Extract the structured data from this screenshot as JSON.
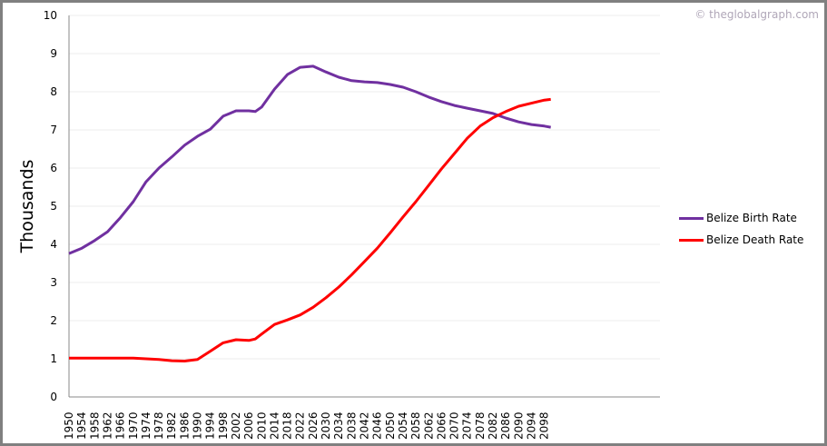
{
  "watermark": "© theglobalgraph.com",
  "chart_data": {
    "type": "line",
    "title": "",
    "xlabel": "",
    "ylabel": "Thousands",
    "ylim": [
      0,
      10
    ],
    "yticks": [
      0,
      1,
      2,
      3,
      4,
      5,
      6,
      7,
      8,
      9,
      10
    ],
    "xlim": [
      1950,
      2134
    ],
    "xticks": [
      1950,
      1954,
      1958,
      1962,
      1966,
      1970,
      1974,
      1978,
      1982,
      1986,
      1990,
      1994,
      1998,
      2002,
      2006,
      2010,
      2014,
      2018,
      2022,
      2026,
      2030,
      2034,
      2038,
      2042,
      2046,
      2050,
      2054,
      2058,
      2062,
      2066,
      2070,
      2074,
      2078,
      2082,
      2086,
      2090,
      2094,
      2098
    ],
    "grid": true,
    "legend_position": "right",
    "x": [
      1950,
      1954,
      1958,
      1962,
      1966,
      1970,
      1974,
      1978,
      1982,
      1986,
      1990,
      1994,
      1998,
      2002,
      2006,
      2008,
      2010,
      2014,
      2018,
      2022,
      2026,
      2030,
      2034,
      2038,
      2042,
      2046,
      2050,
      2054,
      2058,
      2062,
      2066,
      2070,
      2074,
      2078,
      2082,
      2086,
      2090,
      2094,
      2098,
      2100
    ],
    "series": [
      {
        "name": "Belize Birth Rate",
        "color": "#7030a0",
        "values": [
          3.76,
          3.9,
          4.1,
          4.33,
          4.7,
          5.12,
          5.64,
          6.0,
          6.29,
          6.6,
          6.83,
          7.02,
          7.36,
          7.5,
          7.5,
          7.48,
          7.6,
          8.07,
          8.45,
          8.64,
          8.67,
          8.52,
          8.38,
          8.29,
          8.26,
          8.24,
          8.19,
          8.12,
          8.0,
          7.86,
          7.74,
          7.64,
          7.57,
          7.5,
          7.43,
          7.31,
          7.21,
          7.14,
          7.1,
          7.07
        ]
      },
      {
        "name": "Belize Death Rate",
        "color": "#ff0000",
        "values": [
          1.02,
          1.02,
          1.02,
          1.02,
          1.02,
          1.02,
          1.0,
          0.98,
          0.95,
          0.94,
          0.98,
          1.2,
          1.42,
          1.5,
          1.48,
          1.52,
          1.65,
          1.9,
          2.02,
          2.15,
          2.35,
          2.6,
          2.88,
          3.2,
          3.55,
          3.9,
          4.3,
          4.72,
          5.12,
          5.55,
          5.98,
          6.38,
          6.78,
          7.1,
          7.32,
          7.48,
          7.62,
          7.7,
          7.78,
          7.8
        ]
      }
    ]
  }
}
